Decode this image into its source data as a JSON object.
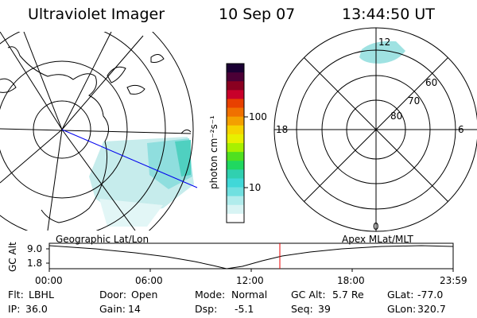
{
  "header": {
    "title": "Ultraviolet Imager",
    "date": "10 Sep 07",
    "time": "13:44:50 UT"
  },
  "colorbar": {
    "unit_label": "photon cm⁻²s⁻¹",
    "ticks": [
      "100",
      "10"
    ],
    "colors": [
      "#1a0033",
      "#4b0036",
      "#8a0020",
      "#c8002a",
      "#e84000",
      "#f07000",
      "#f4a000",
      "#f6d400",
      "#e8f000",
      "#a8f000",
      "#50e020",
      "#20d860",
      "#30d0b0",
      "#40d8d8",
      "#70e0e0",
      "#b0ecec",
      "#d8f4f4",
      "#ffffff"
    ]
  },
  "geo_map": {
    "label": "Geographic Lat/Lon"
  },
  "polar_map": {
    "label": "Apex MLat/MLT",
    "lat_labels": [
      "80",
      "70",
      "60"
    ],
    "mlt_labels": [
      "12",
      "18",
      "6",
      "0"
    ]
  },
  "gc_alt_plot": {
    "ylabel": "GC Alt",
    "y_ticks": [
      "9.0",
      "1.8"
    ],
    "x_ticks": [
      "00:00",
      "06:00",
      "12:00",
      "18:00",
      "23:59"
    ]
  },
  "info_rows": [
    [
      {
        "label": "Flt:",
        "value": "LBHL"
      },
      {
        "label": "Door:",
        "value": "Open"
      },
      {
        "label": "Mode:",
        "value": "Normal"
      },
      {
        "label": "GC Alt:",
        "value": "5.7 Re"
      },
      {
        "label": "GLat:",
        "value": "-77.0"
      }
    ],
    [
      {
        "label": "IP:",
        "value": "36.0"
      },
      {
        "label": "Gain:",
        "value": "14"
      },
      {
        "label": "Dsp:",
        "value": "-5.1"
      },
      {
        "label": "Seq:",
        "value": "39"
      },
      {
        "label": "GLon:",
        "value": "320.7"
      }
    ]
  ]
}
